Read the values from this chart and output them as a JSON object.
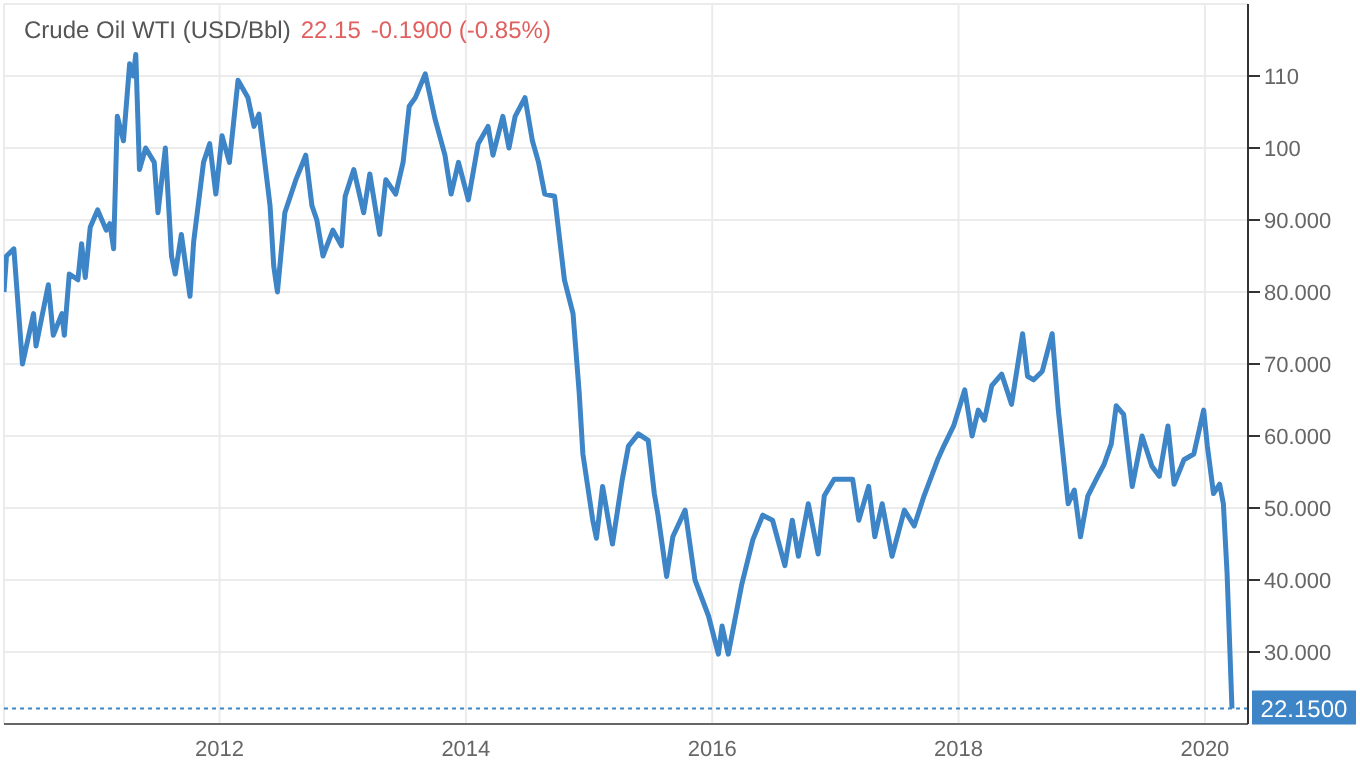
{
  "chart_data": {
    "type": "line",
    "title": "Crude Oil WTI (USD/Bbl)",
    "annotations": [
      "22.15",
      "-0.1900 (-0.85%)"
    ],
    "x": [
      2010.25,
      2010.27,
      2010.33,
      2010.4,
      2010.49,
      2010.51,
      2010.61,
      2010.65,
      2010.72,
      2010.74,
      2010.78,
      2010.85,
      2010.88,
      2010.91,
      2010.95,
      2011.01,
      2011.08,
      2011.11,
      2011.14,
      2011.17,
      2011.22,
      2011.27,
      2011.3,
      2011.32,
      2011.35,
      2011.4,
      2011.47,
      2011.5,
      2011.56,
      2011.61,
      2011.64,
      2011.69,
      2011.76,
      2011.79,
      2011.87,
      2011.92,
      2011.97,
      2012.02,
      2012.08,
      2012.15,
      2012.23,
      2012.28,
      2012.32,
      2012.41,
      2012.44,
      2012.47,
      2012.53,
      2012.62,
      2012.7,
      2012.75,
      2012.79,
      2012.84,
      2012.92,
      2012.99,
      2013.02,
      2013.09,
      2013.17,
      2013.22,
      2013.3,
      2013.35,
      2013.43,
      2013.49,
      2013.54,
      2013.59,
      2013.67,
      2013.75,
      2013.83,
      2013.88,
      2013.94,
      2014.02,
      2014.1,
      2014.18,
      2014.22,
      2014.3,
      2014.35,
      2014.4,
      2014.48,
      2014.54,
      2014.59,
      2014.64,
      2014.72,
      2014.8,
      2014.87,
      2014.92,
      2014.95,
      2015.03,
      2015.06,
      2015.11,
      2015.19,
      2015.27,
      2015.32,
      2015.4,
      2015.48,
      2015.53,
      2015.56,
      2015.63,
      2015.68,
      2015.78,
      2015.86,
      2015.97,
      2016.05,
      2016.08,
      2016.13,
      2016.24,
      2016.33,
      2016.41,
      2016.49,
      2016.59,
      2016.65,
      2016.7,
      2016.78,
      2016.86,
      2016.91,
      2016.99,
      2017.14,
      2017.19,
      2017.27,
      2017.32,
      2017.38,
      2017.46,
      2017.56,
      2017.64,
      2017.72,
      2017.83,
      2017.88,
      2017.96,
      2018.05,
      2018.11,
      2018.16,
      2018.21,
      2018.27,
      2018.35,
      2018.43,
      2018.52,
      2018.56,
      2018.61,
      2018.68,
      2018.76,
      2018.81,
      2018.89,
      2018.94,
      2018.99,
      2019.05,
      2019.13,
      2019.18,
      2019.24,
      2019.28,
      2019.34,
      2019.41,
      2019.49,
      2019.57,
      2019.63,
      2019.7,
      2019.75,
      2019.83,
      2019.91,
      2019.99,
      2020.02,
      2020.07,
      2020.12,
      2020.15,
      2020.18,
      2020.22
    ],
    "series": [
      {
        "color": "#3d85c6",
        "values": [
          80,
          85,
          86,
          70,
          77,
          72.5,
          81,
          74,
          77,
          74,
          82.5,
          81.7,
          86.7,
          82,
          89,
          91.4,
          88.6,
          89.5,
          86,
          104.4,
          101,
          111.7,
          110,
          113,
          97,
          100,
          98,
          91,
          100,
          85,
          82.5,
          88,
          79.4,
          87,
          98,
          100.6,
          93.6,
          101.7,
          98,
          109.4,
          107,
          103,
          104.7,
          92,
          83.6,
          80,
          91,
          95.6,
          99,
          92,
          90,
          85,
          88.6,
          86.4,
          93.3,
          97,
          91,
          96.4,
          88,
          95.6,
          93.6,
          98,
          105.8,
          107,
          110.3,
          104,
          99,
          93.6,
          98,
          92.8,
          100.6,
          103,
          99,
          104.4,
          100,
          104.4,
          107,
          101,
          98,
          93.6,
          93.3,
          81.7,
          77,
          66,
          57.5,
          48.3,
          45.8,
          53,
          45,
          54,
          58.6,
          60.3,
          59.4,
          52,
          49,
          40.5,
          46,
          49.7,
          40,
          35,
          29.7,
          33.6,
          29.7,
          39.4,
          45.6,
          49,
          48.3,
          42,
          48.3,
          43.3,
          50.6,
          43.6,
          51.7,
          54,
          54,
          48.3,
          53,
          46,
          50.6,
          43.3,
          49.7,
          47.5,
          51.7,
          56.7,
          58.6,
          61.4,
          66.4,
          60,
          63.6,
          62.2,
          67,
          68.6,
          64.4,
          74.2,
          68.3,
          67.8,
          69,
          74.2,
          63.6,
          50.6,
          52.5,
          46,
          51.7,
          54.4,
          56,
          58.9,
          64.2,
          63,
          53,
          60,
          55.8,
          54.4,
          61.4,
          53.3,
          56.7,
          57.5,
          63.6,
          58.6,
          52,
          53.3,
          50.6,
          41,
          22.15
        ]
      }
    ],
    "xlim": [
      2010.25,
      2020.35
    ],
    "xticks": [
      2012,
      2014,
      2016,
      2018,
      2020
    ],
    "ylim": [
      20,
      120
    ],
    "yticks": [
      {
        "value": 30,
        "label": "30.000"
      },
      {
        "value": 40,
        "label": "40.000"
      },
      {
        "value": 50,
        "label": "50.000"
      },
      {
        "value": 60,
        "label": "60.000"
      },
      {
        "value": 70,
        "label": "70.000"
      },
      {
        "value": 80,
        "label": "80.000"
      },
      {
        "value": 90,
        "label": "90.000"
      },
      {
        "value": 100,
        "label": "100"
      },
      {
        "value": 110,
        "label": "110"
      }
    ],
    "ref_lines": [
      {
        "axis": "y",
        "value": 22.15,
        "label": "22.1500",
        "color": "#3d85c6",
        "line_style": "dotted"
      }
    ],
    "grid": true,
    "legend": false,
    "marker": "none",
    "line_style": "solid"
  }
}
